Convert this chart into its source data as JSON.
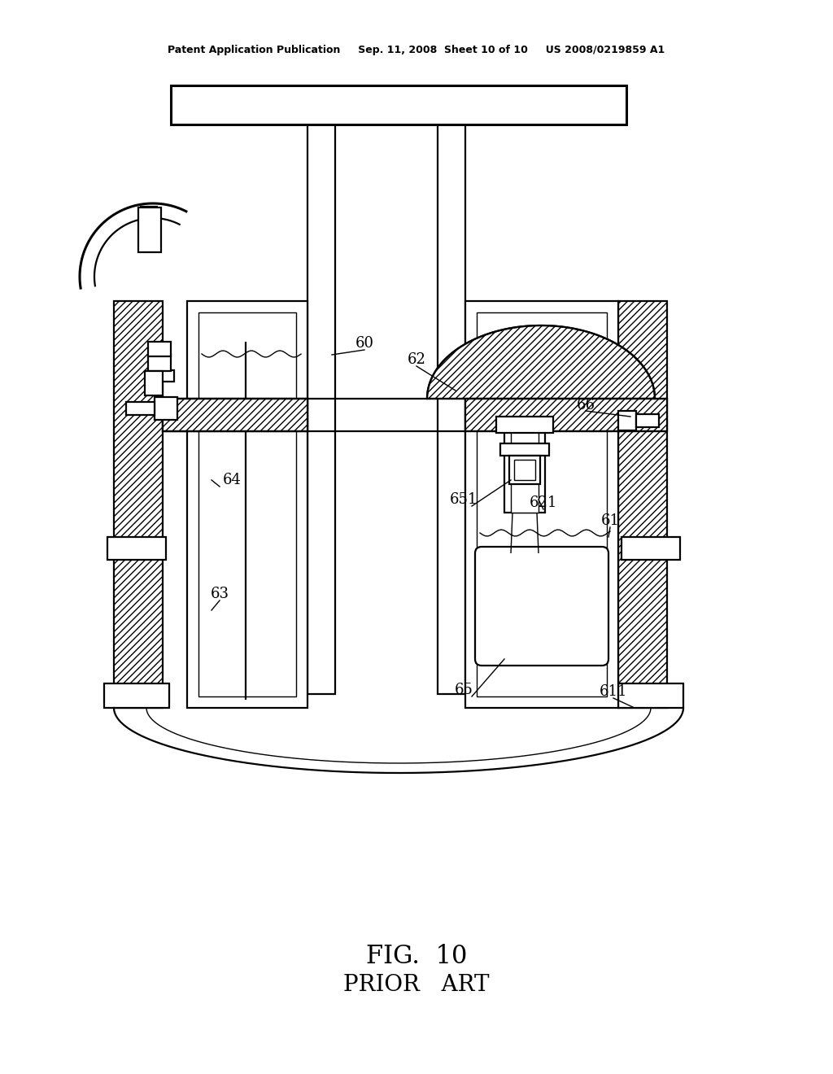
{
  "bg_color": "#ffffff",
  "line_color": "#000000",
  "header_text": "Patent Application Publication     Sep. 11, 2008  Sheet 10 of 10     US 2008/0219859 A1",
  "fig_label": "FIG.  10",
  "fig_sublabel": "PRIOR   ART",
  "lw": 1.6,
  "lw_thin": 1.0,
  "lw_thick": 2.2
}
